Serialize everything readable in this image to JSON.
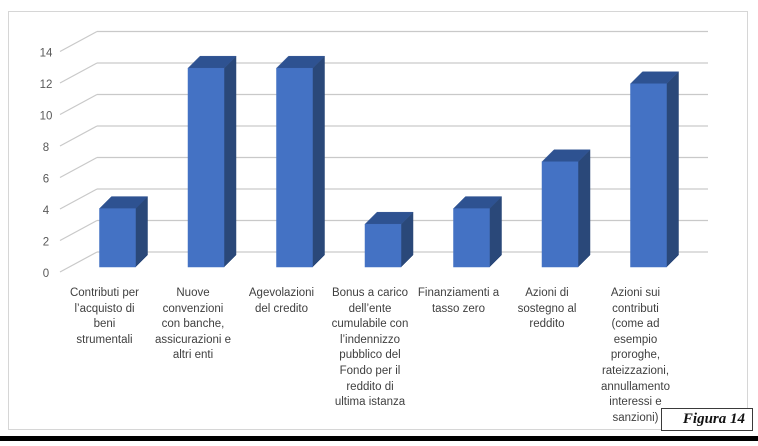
{
  "figure_caption": {
    "label": "Figura 14"
  },
  "chart_data": {
    "type": "bar",
    "subtype": "3d-column",
    "title": "",
    "xlabel": "",
    "ylabel": "",
    "ylim": [
      0,
      14
    ],
    "yticks": [
      0,
      2,
      4,
      6,
      8,
      10,
      12,
      14
    ],
    "grid": true,
    "legend": "none",
    "categories": [
      "Contributi per\nl’acquisto di\nbeni\nstrumentali",
      "Nuove\nconvenzioni\ncon banche,\nassicurazioni e\naltri enti",
      "Agevolazioni\ndel credito",
      "Bonus a carico\ndell’ente\ncumulabile con\nl’indennizzo\npubblico del\nFondo per il\nreddito di\nultima istanza",
      "Finanziamenti a\ntasso zero",
      "Azioni di\nsostegno al\nreddito",
      "Azioni sui\ncontributi\n(come ad\nesempio\nproroghe,\nrateizzazioni,\nannullamento\ninteressi e\nsanzioni)"
    ],
    "values": [
      4,
      13,
      13,
      3,
      4,
      7,
      12
    ],
    "colors": {
      "bar_front": "#4472C4",
      "bar_top": "#2E5291",
      "bar_side": "#2A4879",
      "gridline": "#C9C9C9",
      "tick_text": "#595959",
      "category_text": "#404040",
      "chart_border": "#D6D6D6"
    }
  }
}
